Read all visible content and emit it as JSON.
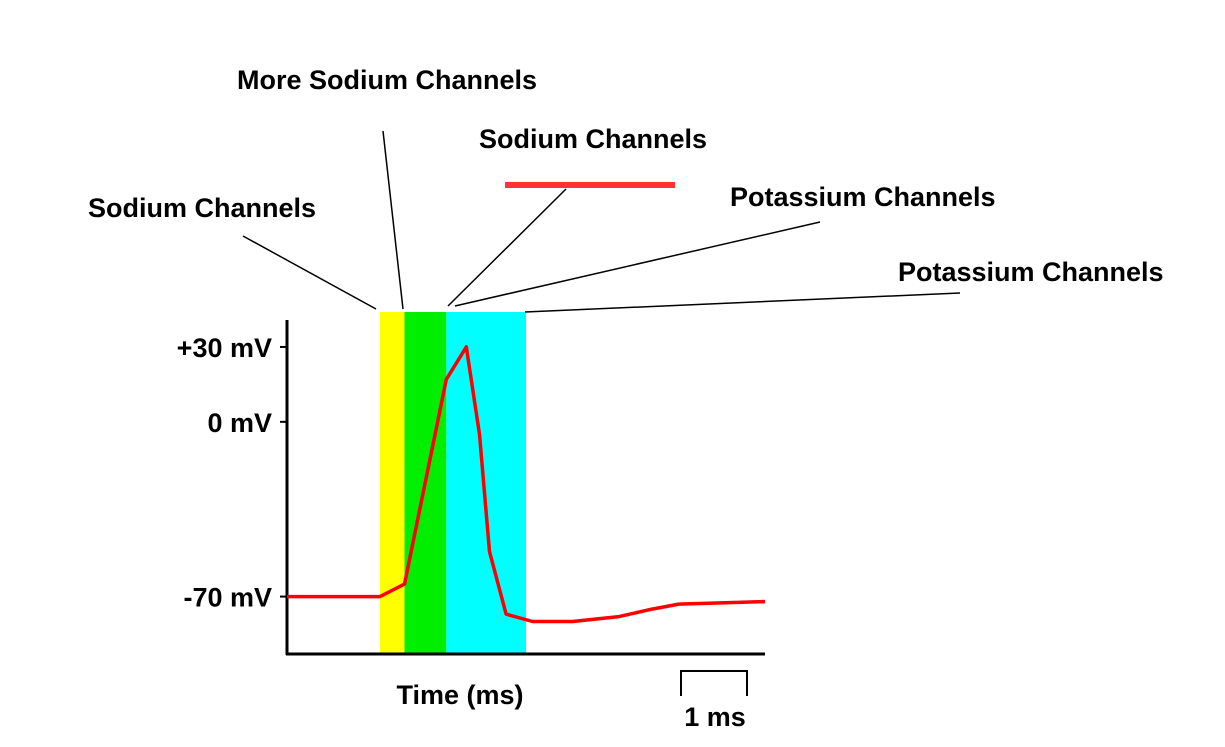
{
  "labels": {
    "sodium_channels_left": "Sodium Channels",
    "more_sodium_channels": "More Sodium Channels",
    "sodium_channels_closing": "Sodium Channels",
    "potassium_channels_upper": "Potassium Channels",
    "potassium_channels_lower": "Potassium Channels"
  },
  "chart_data": {
    "type": "line",
    "title": "",
    "xlabel": "Time (ms)",
    "ylabel": "",
    "y_ticks": [
      {
        "value": 30,
        "label": "+30 mV"
      },
      {
        "value": 0,
        "label": "0 mV"
      },
      {
        "value": -70,
        "label": "-70 mV"
      }
    ],
    "scale_bar": {
      "label": "1 ms",
      "duration_ms": 1
    },
    "series": [
      {
        "color": "#ff0000",
        "x": [
          0,
          1.4,
          1.77,
          2.4,
          2.7,
          2.9,
          3.05,
          3.3,
          3.7,
          4.3,
          5.0,
          5.5,
          5.9,
          7.2
        ],
        "y": [
          -70,
          -70,
          -65,
          17,
          30,
          -5,
          -52,
          -77,
          -80,
          -80,
          -78,
          -75,
          -73,
          -72
        ]
      }
    ],
    "phases": [
      {
        "start": 1.4,
        "end": 1.77,
        "color": "#ffff00"
      },
      {
        "start": 1.77,
        "end": 2.4,
        "color": "#00ee00"
      },
      {
        "start": 2.4,
        "end": 3.6,
        "color": "#00ffff"
      }
    ],
    "xlim": [
      0,
      7.2
    ],
    "ylim": [
      -93,
      44
    ]
  },
  "legend_color": "#ff3333"
}
